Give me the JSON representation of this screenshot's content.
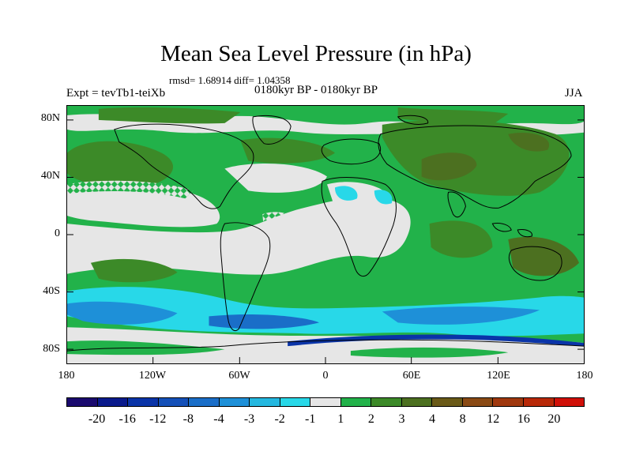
{
  "title": "Mean Sea Level Pressure (in hPa)",
  "stats": "rmsd= 1.68914 diff= 1.04358",
  "experiment": "Expt = tevTb1-teiXb",
  "period": "0180kyr BP - 0180kyr BP",
  "season": "JJA",
  "y_axis_labels": [
    "80N",
    "40N",
    "0",
    "40S",
    "80S"
  ],
  "x_axis_labels": [
    "180",
    "120W",
    "60W",
    "0",
    "60E",
    "120E",
    "180"
  ],
  "colorbar": {
    "labels": [
      "-20",
      "-16",
      "-12",
      "-8",
      "-4",
      "-3",
      "-2",
      "-1",
      "1",
      "2",
      "3",
      "4",
      "8",
      "12",
      "16",
      "20"
    ],
    "colors": [
      "#1a0a6e",
      "#0a1a8c",
      "#0a34a8",
      "#1450b8",
      "#1a6ec8",
      "#1e90d8",
      "#24b8e0",
      "#28d8e8",
      "#e6e6e6",
      "#22b24a",
      "#3c8a28",
      "#4c7020",
      "#6a5a18",
      "#8a4a14",
      "#a0380e",
      "#b82808",
      "#d01008"
    ]
  },
  "map": {
    "projection": "cylindrical-equidistant",
    "lon_range": [
      -180,
      180
    ],
    "lat_range": [
      -90,
      90
    ],
    "background_level_color": "#22b24a"
  }
}
